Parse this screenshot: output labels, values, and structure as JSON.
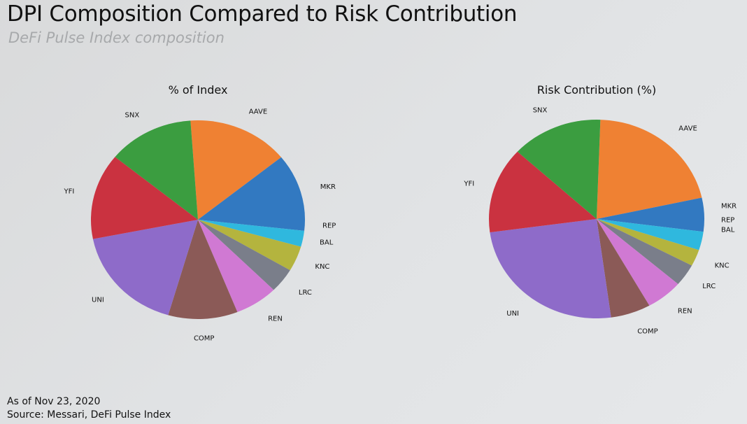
{
  "header": {
    "title": "DPI Composition Compared to Risk Contribution",
    "subtitle": "DeFi Pulse Index composition"
  },
  "footer": {
    "date": "As of Nov 23, 2020",
    "source": "Source: Messari, DeFi Pulse Index"
  },
  "colors": {
    "AAVE": "#ef8133",
    "MKR": "#3279c1",
    "REP": "#2fb8de",
    "BAL": "#b4b43e",
    "KNC": "#7a7e8a",
    "LRC": "#d079d3",
    "REN": "#d079d3",
    "COMP": "#8b5a57",
    "UNI": "#8e6bc9",
    "YFI": "#ca3240",
    "SNX": "#3b9d40"
  },
  "chart_data": [
    {
      "type": "pie",
      "title": "% of Index",
      "start_angle_deg": 94,
      "labels": [
        "AAVE",
        "MKR",
        "REP",
        "BAL",
        "KNC",
        "LRC",
        "REN",
        "COMP",
        "UNI",
        "YFI",
        "SNX"
      ],
      "values": [
        15.3,
        12.6,
        2.6,
        0.0,
        4.1,
        4.0,
        6.5,
        10.5,
        17.4,
        14.0,
        13.0
      ],
      "slice_colors": [
        "#ef8133",
        "#3279c1",
        "#2fb8de",
        "#2fb8de",
        "#b4b43e",
        "#7a7e8a",
        "#d079d3",
        "#8b5a57",
        "#8e6bc9",
        "#ca3240",
        "#3b9d40"
      ]
    },
    {
      "type": "pie",
      "title": "Risk Contribution (%)",
      "start_angle_deg": 88,
      "labels": [
        "AAVE",
        "MKR",
        "REP",
        "BAL",
        "KNC",
        "LRC",
        "REN",
        "COMP",
        "UNI",
        "YFI",
        "SNX"
      ],
      "values": [
        21.0,
        5.5,
        0.0,
        3.0,
        2.7,
        3.6,
        5.5,
        6.0,
        25.0,
        14.0,
        13.7
      ],
      "slice_colors": [
        "#ef8133",
        "#3279c1",
        "#2fb8de",
        "#2fb8de",
        "#b4b43e",
        "#7a7e8a",
        "#d079d3",
        "#8b5a57",
        "#8e6bc9",
        "#ca3240",
        "#3b9d40"
      ]
    }
  ]
}
